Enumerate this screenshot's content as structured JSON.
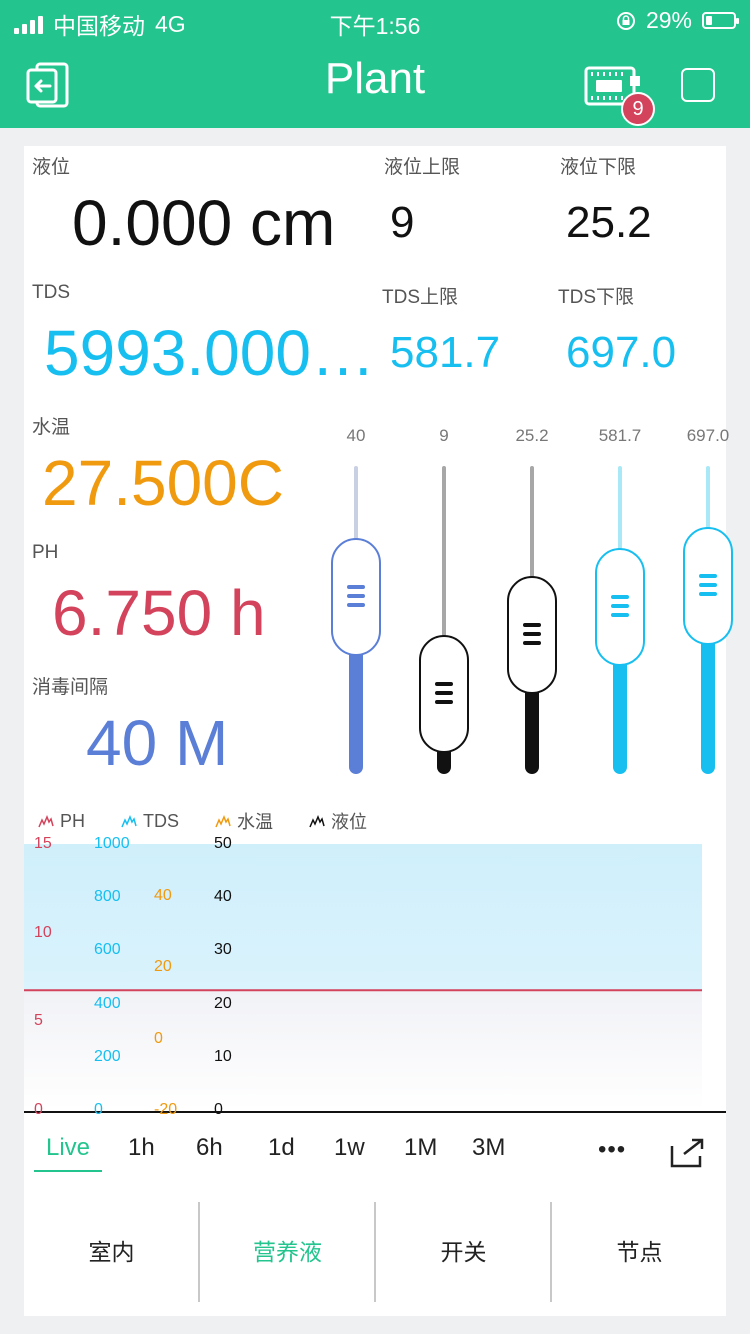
{
  "status": {
    "carrier": "中国移动",
    "network": "4G",
    "time": "下午1:56",
    "battery": "29%",
    "battery_level": 0.29
  },
  "header": {
    "title": "Plant",
    "badge_count": "9"
  },
  "readings": {
    "level": {
      "label": "液位",
      "value": "0.000 cm",
      "color": "#111111"
    },
    "level_upper": {
      "label": "液位上限",
      "value": "9"
    },
    "level_lower": {
      "label": "液位下限",
      "value": "25.2"
    },
    "tds": {
      "label": "TDS",
      "value": "5993.000…",
      "color": "#17bff0"
    },
    "tds_upper": {
      "label": "TDS上限",
      "value": "581.7"
    },
    "tds_lower": {
      "label": "TDS下限",
      "value": "697.0"
    },
    "water_temp": {
      "label": "水温",
      "value": "27.500C",
      "color": "#f09a10"
    },
    "ph": {
      "label": "PH",
      "value": "6.750 h",
      "color": "#d3435c"
    },
    "disinfect_interval": {
      "label": "消毒间隔",
      "value": "40 M",
      "color": "#5b7fd6"
    }
  },
  "sliders": [
    {
      "caption": "40",
      "color": "#5b7fd6",
      "track_color": "#c9d0e4",
      "fraction": 0.62
    },
    {
      "caption": "9",
      "color": "#111111",
      "track_color": "#a7a7a7",
      "fraction": 0.11
    },
    {
      "caption": "25.2",
      "color": "#111111",
      "track_color": "#a7a7a7",
      "fraction": 0.42
    },
    {
      "caption": "581.7",
      "color": "#17bff0",
      "track_color": "#a8e8f7",
      "fraction": 0.57
    },
    {
      "caption": "697.0",
      "color": "#17bff0",
      "track_color": "#a8e8f7",
      "fraction": 0.68
    }
  ],
  "chart": {
    "legend": [
      {
        "label": "PH",
        "color": "#d3435c"
      },
      {
        "label": "TDS",
        "color": "#17bff0"
      },
      {
        "label": "水温",
        "color": "#f09a10"
      },
      {
        "label": "液位",
        "color": "#111111"
      }
    ],
    "axes": [
      {
        "name": "PH",
        "color": "#d3435c",
        "ticks": [
          "15",
          "10",
          "5",
          "0"
        ]
      },
      {
        "name": "TDS",
        "color": "#17bff0",
        "ticks": [
          "1000",
          "800",
          "600",
          "400",
          "200",
          "0"
        ]
      },
      {
        "name": "水温",
        "color": "#f09a10",
        "ticks": [
          "40",
          "20",
          "0",
          "-20"
        ]
      },
      {
        "name": "液位",
        "color": "#111111",
        "ticks": [
          "50",
          "40",
          "30",
          "20",
          "10",
          "0"
        ]
      }
    ]
  },
  "chart_data": {
    "type": "area",
    "series": [
      {
        "name": "PH",
        "ylim": [
          0,
          15
        ],
        "values": [
          6.75
        ]
      },
      {
        "name": "TDS",
        "ylim": [
          0,
          1000
        ],
        "values": [
          1000
        ]
      }
    ],
    "legend": [
      "PH",
      "TDS",
      "水温",
      "液位"
    ],
    "legend_position": "top-left",
    "grid": false
  },
  "ranges": [
    "Live",
    "1h",
    "6h",
    "1d",
    "1w",
    "1M",
    "3M"
  ],
  "more_label": "•••",
  "tabs": [
    {
      "label": "室内"
    },
    {
      "label": "营养液",
      "active": true
    },
    {
      "label": "开关"
    },
    {
      "label": "节点"
    }
  ]
}
